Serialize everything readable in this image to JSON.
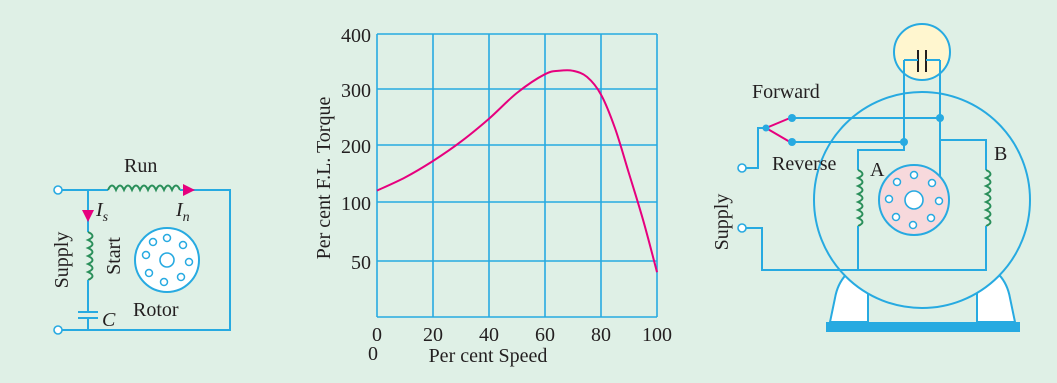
{
  "left_circuit": {
    "run_label": "Run",
    "supply_label": "Supply",
    "start_label": "Start",
    "is_label": "I",
    "is_sub": "s",
    "in_label": "I",
    "in_sub": "n",
    "c_label": "C",
    "rotor_label": "Rotor"
  },
  "chart_data": {
    "type": "line",
    "ylabel": "Per cent F.L. Torque",
    "xlabel": "Per cent Speed",
    "x_ticks": [
      "0",
      "20",
      "40",
      "60",
      "80",
      "100"
    ],
    "y_ticks": [
      "50",
      "100",
      "200",
      "300",
      "400"
    ],
    "origin_label": "0",
    "series": [
      {
        "x": [
          0,
          10,
          20,
          30,
          40,
          50,
          60,
          65,
          70,
          75,
          80,
          85,
          90,
          95,
          100
        ],
        "y": [
          120,
          143,
          172,
          206,
          247,
          293,
          327,
          333,
          333,
          322,
          290,
          230,
          150,
          85,
          40
        ]
      }
    ],
    "y_gridlines": [
      50,
      100,
      200,
      300,
      400
    ],
    "curve_color": "#e6007e",
    "grid_color": "#27aae1"
  },
  "right_circuit": {
    "forward_label": "Forward",
    "reverse_label": "Reverse",
    "supply_label": "Supply",
    "a_label": "A",
    "b_label": "B"
  },
  "colors": {
    "background": "#dff0e6",
    "wire": "#27aae1",
    "arrow": "#e6007e",
    "rotor_fill": "#f7d9dc",
    "cap_fill": "#fff6cf"
  }
}
